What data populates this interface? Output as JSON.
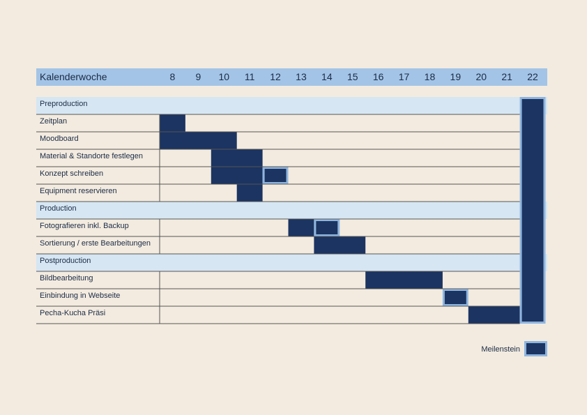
{
  "chart_data": {
    "type": "gantt",
    "header_label": "Kalenderwoche",
    "weeks": [
      "8",
      "9",
      "10",
      "11",
      "12",
      "13",
      "14",
      "15",
      "16",
      "17",
      "18",
      "19",
      "20",
      "21",
      "22"
    ],
    "rows": [
      {
        "kind": "section",
        "label": "Preproduction"
      },
      {
        "kind": "task",
        "label": "Zeitplan",
        "bars": [
          {
            "start": "8",
            "end": "8"
          }
        ]
      },
      {
        "kind": "task",
        "label": "Moodboard",
        "bars": [
          {
            "start": "8",
            "end": "10"
          }
        ]
      },
      {
        "kind": "task",
        "label": "Material & Standorte festlegen",
        "bars": [
          {
            "start": "10",
            "end": "11"
          }
        ]
      },
      {
        "kind": "task",
        "label": "Konzept schreiben",
        "bars": [
          {
            "start": "10",
            "end": "11"
          }
        ],
        "milestone": "12"
      },
      {
        "kind": "task",
        "label": "Equipment reservieren",
        "bars": [
          {
            "start": "11",
            "end": "11"
          }
        ]
      },
      {
        "kind": "section",
        "label": "Production"
      },
      {
        "kind": "task",
        "label": "Fotografieren inkl. Backup",
        "bars": [
          {
            "start": "13",
            "end": "13"
          }
        ],
        "milestone": "14"
      },
      {
        "kind": "task",
        "label": "Sortierung / erste Bearbeitungen",
        "bars": [
          {
            "start": "14",
            "end": "15"
          }
        ]
      },
      {
        "kind": "section",
        "label": "Postproduction"
      },
      {
        "kind": "task",
        "label": "Bildbearbeitung",
        "bars": [
          {
            "start": "16",
            "end": "18"
          }
        ]
      },
      {
        "kind": "task",
        "label": "Einbindung in Webseite",
        "bars": [],
        "milestone": "19"
      },
      {
        "kind": "task",
        "label": "Pecha-Kucha Präsi",
        "bars": [
          {
            "start": "20",
            "end": "21"
          }
        ]
      }
    ],
    "final_milestone_week": "22",
    "legend": {
      "label": "Meilenstein"
    },
    "colors": {
      "background": "#f3ebdf",
      "header": "#a3c4e6",
      "section": "#d6e6f2",
      "bar": "#1c3461",
      "milestone_border": "#8fb5df",
      "grid": "#555555"
    }
  }
}
